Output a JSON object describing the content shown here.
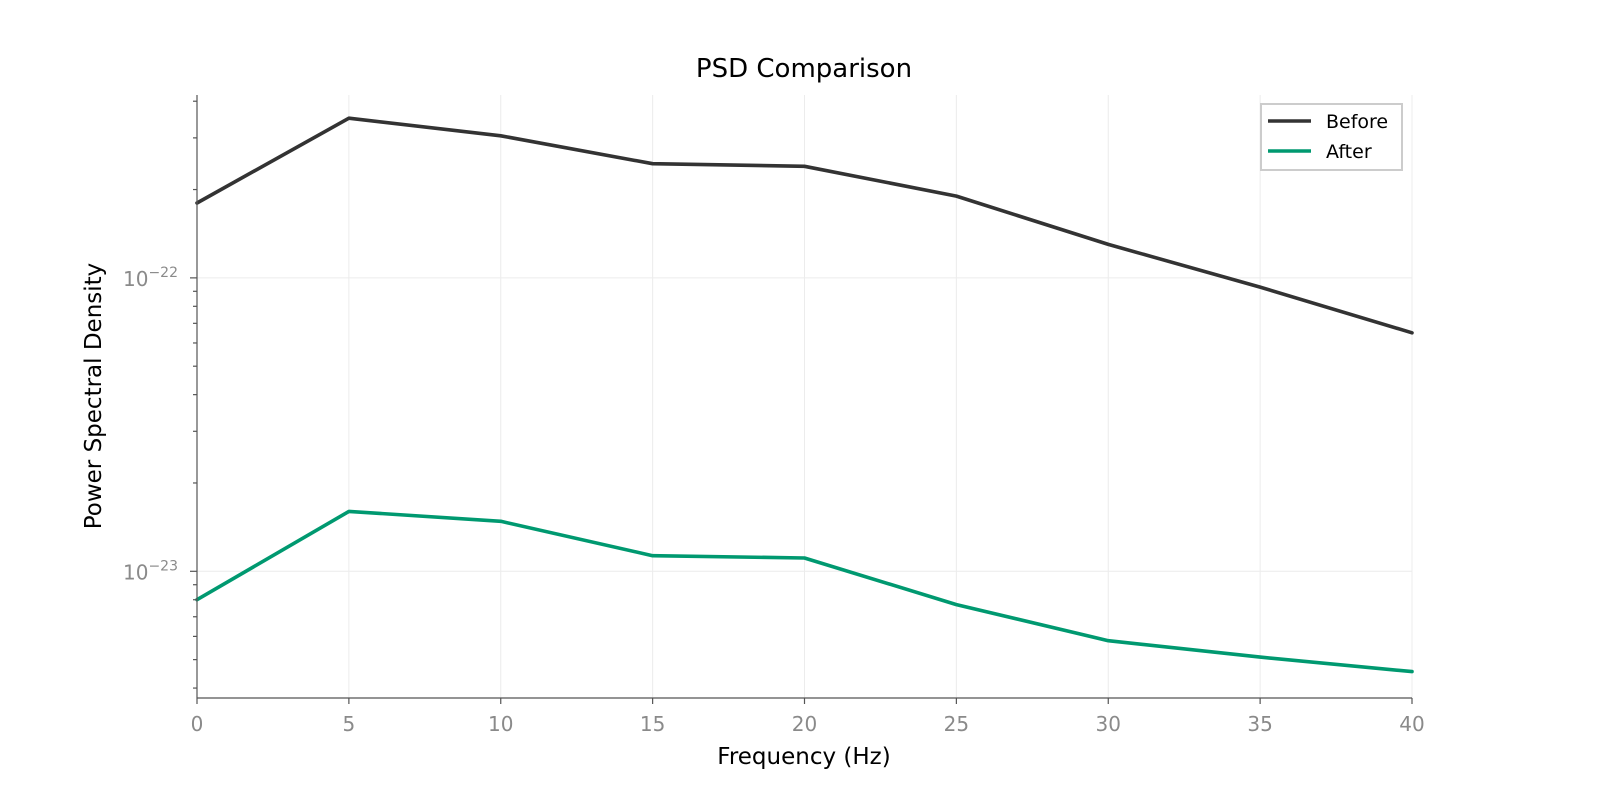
{
  "chart_data": {
    "type": "line",
    "title": "PSD Comparison",
    "xlabel": "Frequency (Hz)",
    "ylabel": "Power Spectral Density",
    "xlim": [
      0,
      40
    ],
    "ylim": [
      3.7e-24,
      4.2e-22
    ],
    "yscale": "log",
    "x": [
      0,
      5,
      10,
      15,
      20,
      25,
      30,
      35,
      40
    ],
    "xticks": [
      0,
      5,
      10,
      15,
      20,
      25,
      30,
      35,
      40
    ],
    "xtick_labels": [
      "0",
      "5",
      "10",
      "15",
      "20",
      "25",
      "30",
      "35",
      "40"
    ],
    "yticks": [
      {
        "value": 1e-22,
        "base": "10",
        "exp": "−22"
      },
      {
        "value": 1e-23,
        "base": "10",
        "exp": "−23"
      }
    ],
    "grid": true,
    "legend_position": "top-right",
    "series": [
      {
        "name": "Before",
        "color": "#333333",
        "values": [
          1.8e-22,
          3.5e-22,
          3.05e-22,
          2.45e-22,
          2.4e-22,
          1.9e-22,
          1.3e-22,
          9.3e-23,
          6.5e-23
        ]
      },
      {
        "name": "After",
        "color": "#009970",
        "values": [
          8e-24,
          1.6e-23,
          1.48e-23,
          1.13e-23,
          1.11e-23,
          7.7e-24,
          5.8e-24,
          5.1e-24,
          4.55e-24
        ]
      }
    ]
  }
}
